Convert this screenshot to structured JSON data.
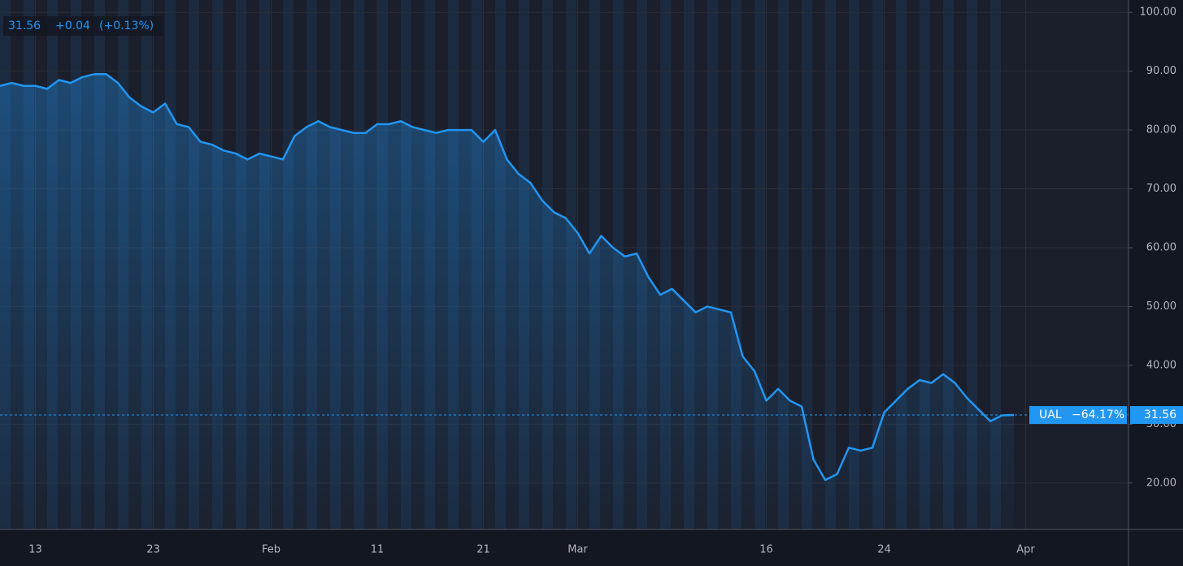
{
  "chart_data": {
    "type": "area",
    "header": {
      "price_change": "+0.04",
      "percent_change": "(+0.13%)"
    },
    "categories": [
      null,
      null,
      null,
      "13",
      null,
      null,
      null,
      null,
      null,
      null,
      null,
      null,
      null,
      "23",
      null,
      null,
      null,
      null,
      null,
      null,
      null,
      null,
      null,
      "Feb",
      null,
      null,
      null,
      null,
      null,
      null,
      null,
      null,
      "11",
      null,
      null,
      null,
      null,
      null,
      null,
      null,
      null,
      "21",
      null,
      null,
      null,
      null,
      null,
      null,
      null,
      "Mar",
      null,
      null,
      null,
      null,
      null,
      null,
      null,
      null,
      null,
      null,
      null,
      null,
      null,
      null,
      null,
      "16",
      null,
      null,
      null,
      null,
      null,
      null,
      null,
      null,
      null,
      "24",
      null,
      null,
      null,
      null,
      null,
      null,
      null,
      null,
      null,
      null,
      null,
      "Apr"
    ],
    "series": [
      {
        "name": "UAL",
        "change_label": "−64.17%",
        "color": "#2196f3",
        "values": [
          87.5,
          88,
          87.5,
          87.5,
          87,
          88.5,
          88,
          89,
          89.5,
          89.5,
          88,
          85.5,
          84,
          83,
          84.5,
          81,
          80.5,
          78,
          77.5,
          76.5,
          76,
          75,
          76,
          75.5,
          75,
          79,
          80.5,
          81.5,
          80.5,
          80,
          79.5,
          79.5,
          81,
          81,
          81.5,
          80.5,
          80,
          79.5,
          80,
          80,
          80,
          78,
          80,
          75,
          72.5,
          71,
          68,
          66,
          65,
          62.5,
          59,
          62,
          60,
          58.5,
          59,
          55,
          52,
          53,
          51,
          49,
          50,
          49.5,
          49,
          41.5,
          39,
          34,
          36,
          34,
          33,
          24,
          20.5,
          21.5,
          26,
          25.5,
          26,
          32,
          34,
          36,
          37.5,
          37,
          38.5,
          37,
          34.5,
          32.5,
          30.5,
          31.5,
          31.56,
          null
        ]
      }
    ],
    "ylim": [
      12.1,
      102.1
    ],
    "yticks": [
      {
        "value": 20,
        "label": "20.00"
      },
      {
        "value": 30,
        "label": "30.00"
      },
      {
        "value": 40,
        "label": "40.00"
      },
      {
        "value": 50,
        "label": "50.00"
      },
      {
        "value": 60,
        "label": "60.00"
      },
      {
        "value": 70,
        "label": "70.00"
      },
      {
        "value": 80,
        "label": "80.00"
      },
      {
        "value": 90,
        "label": "90.00"
      },
      {
        "value": 100,
        "label": "100.00"
      }
    ],
    "grid": true
  }
}
